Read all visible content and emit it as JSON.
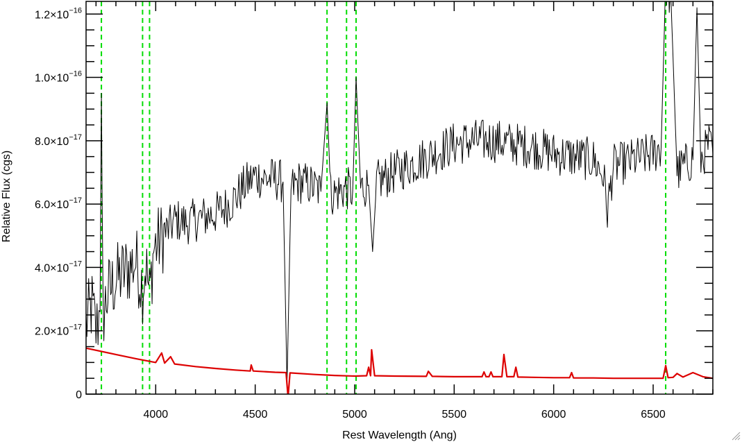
{
  "chart_data": {
    "type": "line",
    "title": "",
    "xlabel": "Rest Wavelength (Ang)",
    "ylabel": "Relative Flux (cgs)",
    "xlim": [
      3650,
      6800
    ],
    "ylim": [
      0,
      1.24e-16
    ],
    "grid": false,
    "x_ticks": [
      4000,
      4500,
      5000,
      5500,
      6000,
      6500
    ],
    "x_tick_labels": [
      "4000",
      "4500",
      "5000",
      "5500",
      "6000",
      "6500"
    ],
    "y_ticks": [
      0,
      2e-17,
      4e-17,
      6e-17,
      8e-17,
      1e-16,
      1.2e-16
    ],
    "y_tick_labels": [
      {
        "mantissa": "0",
        "exponent": ""
      },
      {
        "mantissa": "2.0×10",
        "exponent": "−17"
      },
      {
        "mantissa": "4.0×10",
        "exponent": "−17"
      },
      {
        "mantissa": "6.0×10",
        "exponent": "−17"
      },
      {
        "mantissa": "8.0×10",
        "exponent": "−17"
      },
      {
        "mantissa": "1.0×10",
        "exponent": "−16"
      },
      {
        "mantissa": "1.2×10",
        "exponent": "−16"
      }
    ],
    "reference_lines": {
      "color": "#00dd00",
      "style": "dashed",
      "x": [
        3727,
        3934,
        3969,
        4861,
        4959,
        5007,
        6563
      ]
    },
    "series": [
      {
        "color": "#000000",
        "points": [
          [
            3650,
            2.2e-17
          ],
          [
            3680,
            2.8e-17
          ],
          [
            3700,
            2e-17
          ],
          [
            3720,
            2.6e-17
          ],
          [
            3727,
            9.5e-17
          ],
          [
            3735,
            2.5e-17
          ],
          [
            3760,
            3.2e-17
          ],
          [
            3800,
            3.6e-17
          ],
          [
            3850,
            3.9e-17
          ],
          [
            3900,
            4.2e-17
          ],
          [
            3934,
            3.4e-17
          ],
          [
            3950,
            4.1e-17
          ],
          [
            3969,
            3.1e-17
          ],
          [
            3990,
            4.6e-17
          ],
          [
            4050,
            5.1e-17
          ],
          [
            4100,
            5.5e-17
          ],
          [
            4150,
            5.4e-17
          ],
          [
            4200,
            5.5e-17
          ],
          [
            4250,
            5.6e-17
          ],
          [
            4300,
            5.7e-17
          ],
          [
            4350,
            5.9e-17
          ],
          [
            4400,
            6.2e-17
          ],
          [
            4450,
            6.6e-17
          ],
          [
            4500,
            6.9e-17
          ],
          [
            4550,
            6.8e-17
          ],
          [
            4600,
            6.8e-17
          ],
          [
            4640,
            6.7e-17
          ],
          [
            4660,
            3e-18
          ],
          [
            4680,
            6.5e-17
          ],
          [
            4720,
            6.7e-17
          ],
          [
            4780,
            6.6e-17
          ],
          [
            4830,
            6.4e-17
          ],
          [
            4861,
            9.2e-17
          ],
          [
            4880,
            6.3e-17
          ],
          [
            4920,
            6.4e-17
          ],
          [
            4959,
            6.5e-17
          ],
          [
            4990,
            6.4e-17
          ],
          [
            5007,
            1e-16
          ],
          [
            5030,
            6.5e-17
          ],
          [
            5070,
            6.6e-17
          ],
          [
            5090,
            4.5e-17
          ],
          [
            5110,
            6.7e-17
          ],
          [
            5200,
            7e-17
          ],
          [
            5300,
            7.3e-17
          ],
          [
            5400,
            7.6e-17
          ],
          [
            5500,
            7.9e-17
          ],
          [
            5600,
            8e-17
          ],
          [
            5700,
            8e-17
          ],
          [
            5800,
            7.9e-17
          ],
          [
            5900,
            7.8e-17
          ],
          [
            6000,
            7.6e-17
          ],
          [
            6100,
            7.5e-17
          ],
          [
            6200,
            7.4e-17
          ],
          [
            6250,
            6.9e-17
          ],
          [
            6270,
            5.8e-17
          ],
          [
            6300,
            7.2e-17
          ],
          [
            6400,
            7.4e-17
          ],
          [
            6500,
            7.6e-17
          ],
          [
            6540,
            7.8e-17
          ],
          [
            6563,
            1.3e-16
          ],
          [
            6590,
            1.24e-16
          ],
          [
            6620,
            7e-17
          ],
          [
            6650,
            7.2e-17
          ],
          [
            6700,
            7.4e-17
          ],
          [
            6720,
            1.22e-16
          ],
          [
            6740,
            7.4e-17
          ],
          [
            6780,
            7.9e-17
          ],
          [
            6800,
            7.6e-17
          ]
        ]
      },
      {
        "color": "#dd0000",
        "points": [
          [
            3650,
            1.45e-17
          ],
          [
            3800,
            1.25e-17
          ],
          [
            3900,
            1.12e-17
          ],
          [
            4000,
            1e-17
          ],
          [
            4030,
            1.3e-17
          ],
          [
            4045,
            9.8e-18
          ],
          [
            4075,
            1.18e-17
          ],
          [
            4095,
            9.5e-18
          ],
          [
            4200,
            8.7e-18
          ],
          [
            4300,
            8.1e-18
          ],
          [
            4400,
            7.6e-18
          ],
          [
            4475,
            7.3e-18
          ],
          [
            4480,
            9.2e-18
          ],
          [
            4490,
            7.3e-18
          ],
          [
            4600,
            6.9e-18
          ],
          [
            4655,
            6.8e-18
          ],
          [
            4665,
            -1e-18
          ],
          [
            4675,
            6.7e-18
          ],
          [
            4800,
            6.2e-18
          ],
          [
            4900,
            5.9e-18
          ],
          [
            5000,
            5.7e-18
          ],
          [
            5060,
            5.8e-18
          ],
          [
            5070,
            8.5e-18
          ],
          [
            5080,
            5.8e-18
          ],
          [
            5085,
            1.4e-17
          ],
          [
            5100,
            5.8e-18
          ],
          [
            5200,
            5.7e-18
          ],
          [
            5360,
            5.6e-18
          ],
          [
            5370,
            7.2e-18
          ],
          [
            5390,
            5.6e-18
          ],
          [
            5500,
            5.5e-18
          ],
          [
            5640,
            5.5e-18
          ],
          [
            5650,
            7e-18
          ],
          [
            5660,
            5.5e-18
          ],
          [
            5675,
            5.5e-18
          ],
          [
            5685,
            7e-18
          ],
          [
            5695,
            5.5e-18
          ],
          [
            5740,
            5.5e-18
          ],
          [
            5750,
            1.25e-17
          ],
          [
            5765,
            5.5e-18
          ],
          [
            5800,
            5.5e-18
          ],
          [
            5810,
            8.5e-18
          ],
          [
            5820,
            5.4e-18
          ],
          [
            5900,
            5.3e-18
          ],
          [
            6000,
            5.2e-18
          ],
          [
            6080,
            5.2e-18
          ],
          [
            6090,
            6.8e-18
          ],
          [
            6100,
            5.1e-18
          ],
          [
            6200,
            5.1e-18
          ],
          [
            6300,
            5e-18
          ],
          [
            6400,
            5e-18
          ],
          [
            6500,
            5e-18
          ],
          [
            6550,
            5e-18
          ],
          [
            6563,
            9e-18
          ],
          [
            6575,
            5.2e-18
          ],
          [
            6600,
            5.3e-18
          ],
          [
            6620,
            6.5e-18
          ],
          [
            6650,
            5.4e-18
          ],
          [
            6700,
            6.8e-18
          ],
          [
            6750,
            5.5e-18
          ],
          [
            6800,
            5e-18
          ]
        ]
      }
    ]
  }
}
